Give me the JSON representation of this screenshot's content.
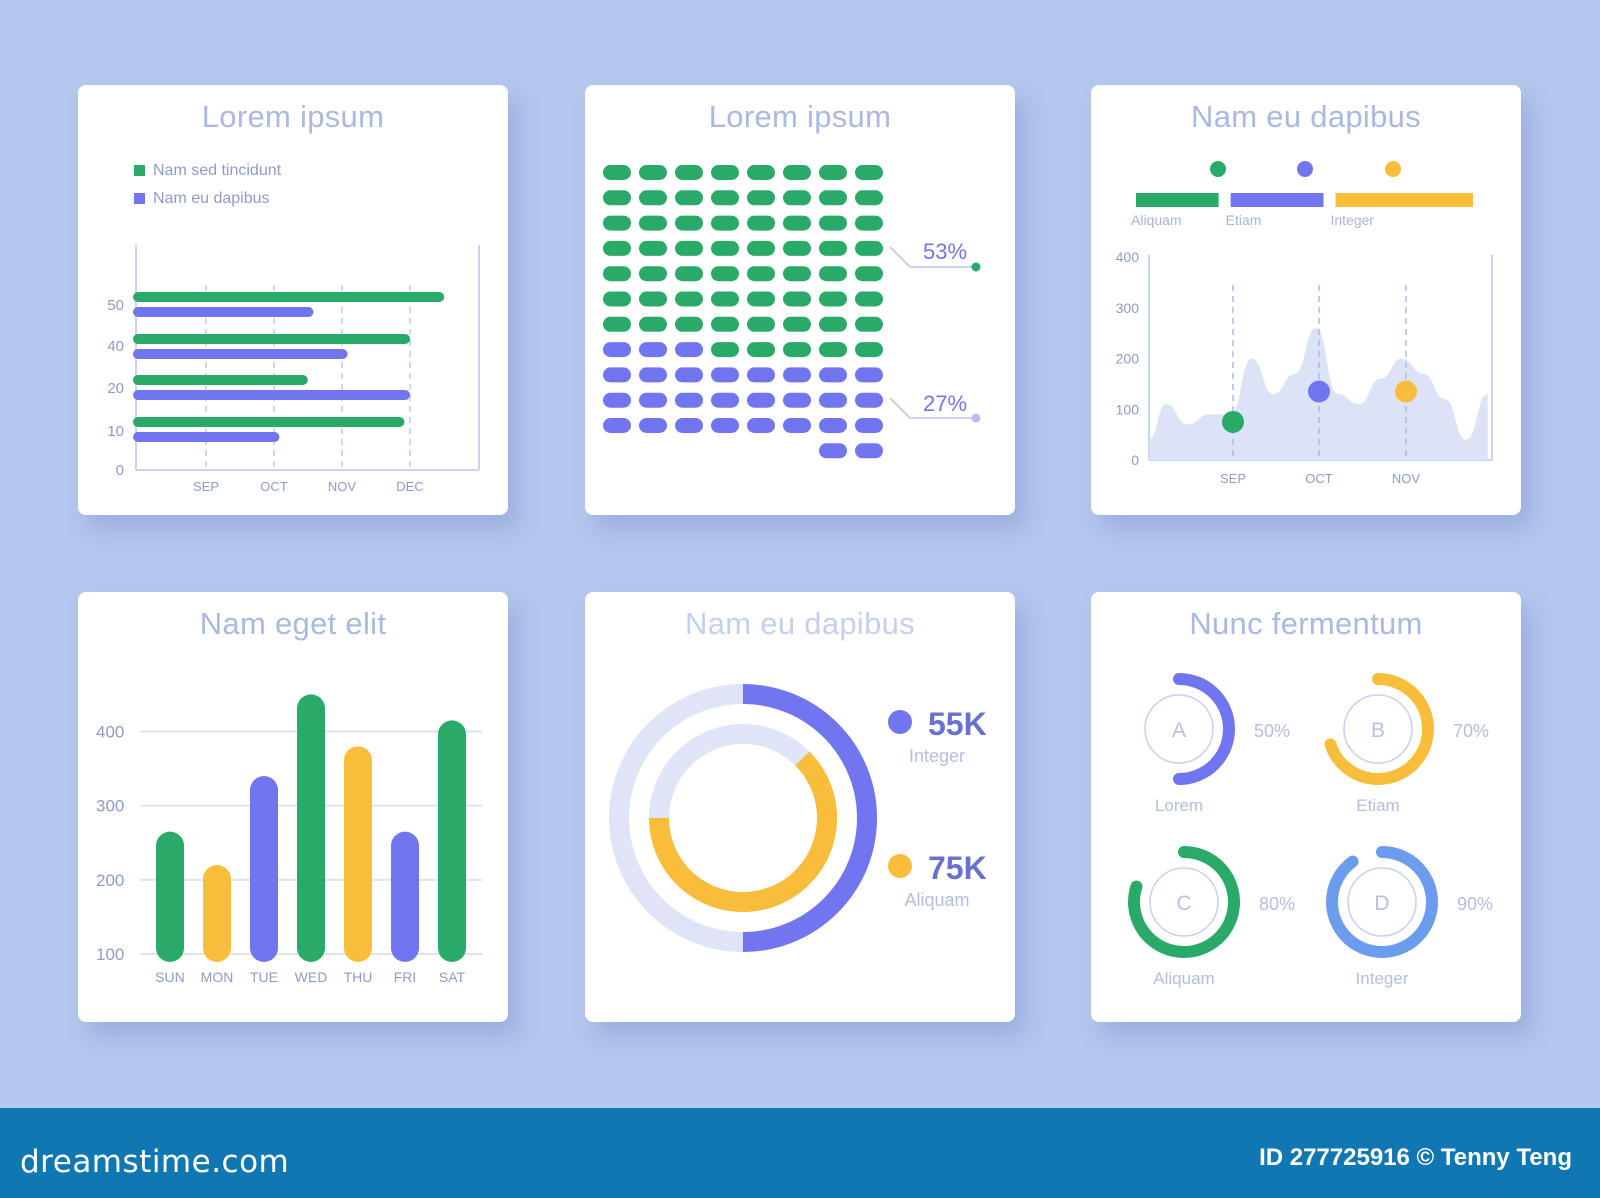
{
  "colors": {
    "green": "#2aaa68",
    "purple": "#7175f0",
    "yellow": "#f8be3b",
    "blue": "#6c9cee",
    "light": "#dfe5f6",
    "text": "#8d9bc8",
    "title": "#aab9e2"
  },
  "footer": {
    "logo": "dreamstime.com",
    "id": "ID 277725916 © Tenny Teng"
  },
  "chart_data": [
    {
      "type": "bar",
      "orientation": "horizontal",
      "title": "Lorem ipsum",
      "legend": [
        "Nam sed tincidunt",
        "Nam eu dapibus"
      ],
      "ytick_labels": [
        "0",
        "10",
        "20",
        "40",
        "50"
      ],
      "xtick_labels": [
        "SEP",
        "OCT",
        "NOV",
        "DEC"
      ],
      "series": [
        {
          "name": "Nam sed tincidunt",
          "values": [
            53,
            47,
            29,
            46
          ]
        },
        {
          "name": "Nam eu dapibus",
          "values": [
            30,
            36,
            47,
            24
          ]
        }
      ]
    },
    {
      "type": "waffle",
      "title": "Lorem ipsum",
      "labels": [
        "53%",
        "27%"
      ],
      "green_count": 61,
      "purple_count": 30
    },
    {
      "type": "area",
      "title": "Nam eu dapibus",
      "legend": [
        "Aliquam",
        "Etiam",
        "Integer"
      ],
      "legend_fractions": [
        0.27,
        0.3,
        0.43
      ],
      "yticks": [
        0,
        100,
        200,
        300,
        400
      ],
      "xtick_labels": [
        "SEP",
        "OCT",
        "NOV"
      ],
      "ylim": [
        0,
        400
      ],
      "x": [
        0,
        0.4,
        0.9,
        1.4,
        1.9,
        2.4,
        2.9,
        3.4,
        3.9,
        4.4,
        4.9,
        5.4,
        5.9,
        6.4,
        6.9,
        7.4,
        7.9
      ],
      "y": [
        40,
        110,
        70,
        90,
        90,
        200,
        130,
        170,
        260,
        130,
        110,
        160,
        200,
        170,
        120,
        40,
        130
      ],
      "markers": [
        {
          "x": 1,
          "y": 75,
          "color": "green"
        },
        {
          "x": 2,
          "y": 135,
          "color": "purple"
        },
        {
          "x": 3,
          "y": 135,
          "color": "yellow"
        }
      ]
    },
    {
      "type": "bar",
      "title": "Nam eget elit",
      "categories": [
        "SUN",
        "MON",
        "TUE",
        "WED",
        "THU",
        "FRI",
        "SAT"
      ],
      "values": [
        265,
        220,
        340,
        450,
        380,
        265,
        415
      ],
      "colors": [
        "green",
        "yellow",
        "purple",
        "green",
        "yellow",
        "purple",
        "green"
      ],
      "yticks": [
        100,
        200,
        300,
        400
      ],
      "ylim": [
        100,
        460
      ]
    },
    {
      "type": "pie",
      "subtype": "ring",
      "title": "Nam eu dapibus",
      "rings": [
        {
          "value": "55K",
          "label": "Integer",
          "fraction": 0.5,
          "color": "purple"
        },
        {
          "value": "75K",
          "label": "Aliquam",
          "fraction": 0.75,
          "color": "yellow"
        }
      ]
    },
    {
      "type": "pie",
      "subtype": "gauges",
      "title": "Nunc fermentum",
      "gauges": [
        {
          "letter": "A",
          "percent": "50%",
          "label": "Lorem",
          "fraction": 0.5,
          "color": "purple"
        },
        {
          "letter": "B",
          "percent": "70%",
          "label": "Etiam",
          "fraction": 0.7,
          "color": "yellow"
        },
        {
          "letter": "C",
          "percent": "80%",
          "label": "Aliquam",
          "fraction": 0.8,
          "color": "green"
        },
        {
          "letter": "D",
          "percent": "90%",
          "label": "Integer",
          "fraction": 0.9,
          "color": "blue"
        }
      ]
    }
  ]
}
